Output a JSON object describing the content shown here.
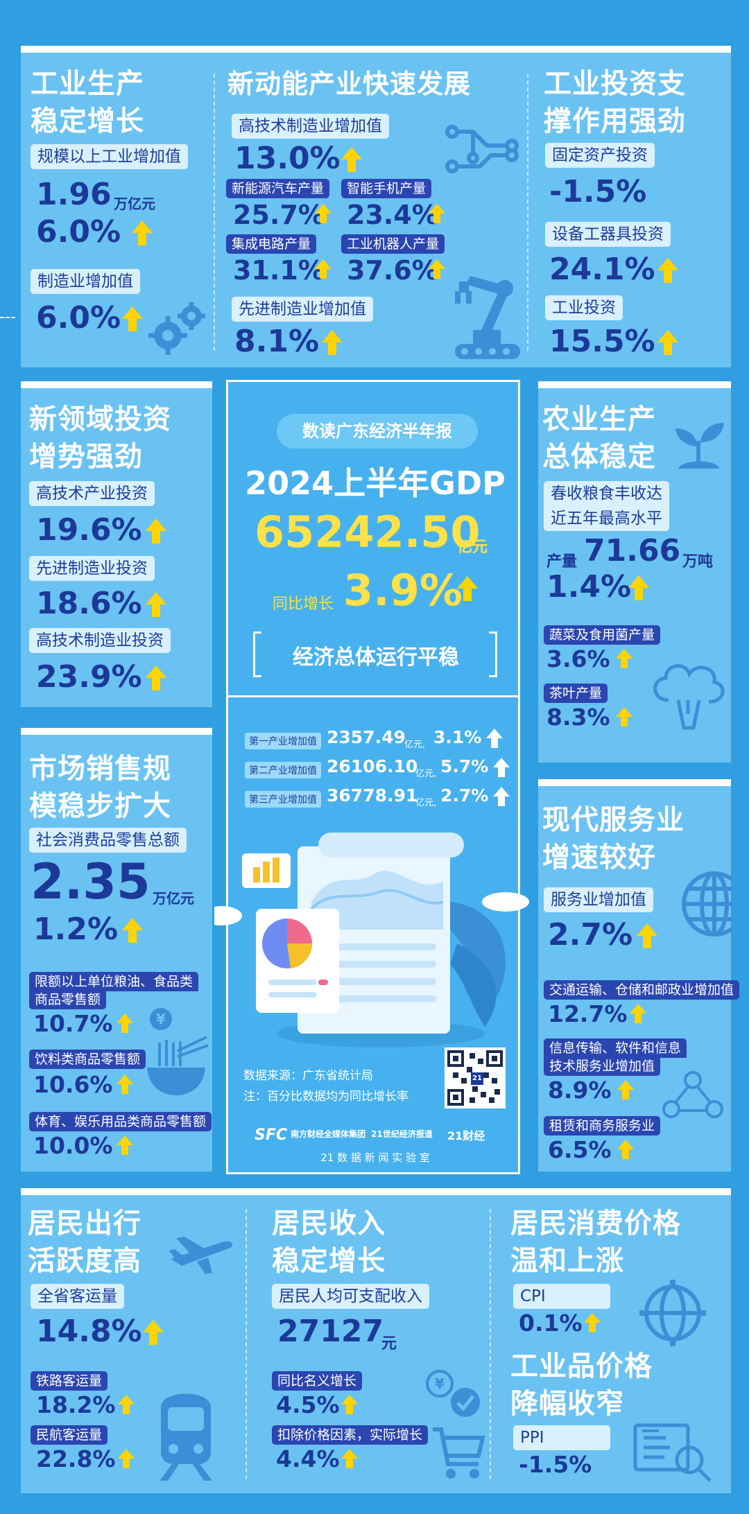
{
  "colors": {
    "background": "#2f9fe2",
    "panel": "#6ac2f2",
    "value": "#1c3898",
    "arrow": "#ffd400",
    "gdp": "#ffe14a"
  },
  "industry": {
    "title_l1": "工业生产",
    "title_l2": "稳定增长",
    "item1_label": "规模以上工业增加值",
    "item1_value": "1.96",
    "item1_unit": "万亿元",
    "item1_growth": "6.0%",
    "item2_label": "制造业增加值",
    "item2_value": "6.0%",
    "icon": "gear-icon"
  },
  "new_energy": {
    "title": "新动能产业快速发展",
    "hitech_label": "高技术制造业增加值",
    "hitech_value": "13.0%",
    "nev_label": "新能源汽车产量",
    "nev_value": "25.7%",
    "phone_label": "智能手机产量",
    "phone_value": "23.4%",
    "ic_label": "集成电路产量",
    "ic_value": "31.1%",
    "robot_label": "工业机器人产量",
    "robot_value": "37.6%",
    "adv_label": "先进制造业增加值",
    "adv_value": "8.1%",
    "icons": [
      "circuit-icon",
      "robot-arm-icon"
    ]
  },
  "investment": {
    "title_l1": "工业投资支",
    "title_l2": "撑作用强劲",
    "fixed_label": "固定资产投资",
    "fixed_value": "-1.5%",
    "equip_label": "设备工器具投资",
    "equip_value": "24.1%",
    "ind_label": "工业投资",
    "ind_value": "15.5%"
  },
  "new_field": {
    "title_l1": "新领域投资",
    "title_l2": "增势强劲",
    "hitech_label": "高技术产业投资",
    "hitech_value": "19.6%",
    "adv_label": "先进制造业投资",
    "adv_value": "18.6%",
    "hmfg_label": "高技术制造业投资",
    "hmfg_value": "23.9%"
  },
  "center": {
    "pill": "数读广东经济半年报",
    "gdp_title": "2024上半年GDP",
    "gdp_value": "65242.50",
    "gdp_unit": "亿元",
    "growth_label": "同比增长",
    "growth_value": "3.9%",
    "summary": "经济总体运行平稳",
    "rows": [
      {
        "label": "第一产业增加值",
        "value": "2357.49",
        "unit": "亿元,",
        "growth": "3.1%"
      },
      {
        "label": "第二产业增加值",
        "value": "26106.10",
        "unit": "亿元,",
        "growth": "5.7%"
      },
      {
        "label": "第三产业增加值",
        "value": "36778.91",
        "unit": "亿元,",
        "growth": "2.7%"
      }
    ],
    "source": "数据来源：广东省统计局",
    "note": "注：百分比数据均为同比增长率",
    "logo_sfc": "SFC",
    "logo_sfc_sub": "南方财经全媒体集团",
    "logo_21": "21世纪经济报道",
    "logo_21cj": "21财经",
    "lab": "21 数 据 新 闻 实 验 室",
    "qr_badge": "21"
  },
  "agriculture": {
    "title_l1": "农业生产",
    "title_l2": "总体稳定",
    "grain_label_l1": "春收粮食丰收达",
    "grain_label_l2": "近五年最高水平",
    "output_label": "产量",
    "output_value": "71.66",
    "output_unit": "万吨",
    "output_growth": "1.4%",
    "veg_label": "蔬菜及食用菌产量",
    "veg_value": "3.6%",
    "tea_label": "茶叶产量",
    "tea_value": "8.3%"
  },
  "retail": {
    "title_l1": "市场销售规",
    "title_l2": "模稳步扩大",
    "total_label": "社会消费品零售总额",
    "total_value": "2.35",
    "total_unit": "万亿元",
    "total_growth": "1.2%",
    "grain_label_l1": "限额以上单位粮油、食品类",
    "grain_label_l2": "商品零售额",
    "grain_value": "10.7%",
    "drink_label": "饮料类商品零售额",
    "drink_value": "10.6%",
    "sport_label": "体育、娱乐用品类商品零售额",
    "sport_value": "10.0%",
    "yen_symbol": "¥"
  },
  "services": {
    "title_l1": "现代服务业",
    "title_l2": "增速较好",
    "svc_label": "服务业增加值",
    "svc_value": "2.7%",
    "trans_label": "交通运输、仓储和邮政业增加值",
    "trans_value": "12.7%",
    "it_label_l1": "信息传输、软件和信息",
    "it_label_l2": "技术服务业增加值",
    "it_value": "8.9%",
    "lease_label": "租赁和商务服务业",
    "lease_value": "6.5%"
  },
  "travel": {
    "title_l1": "居民出行",
    "title_l2": "活跃度高",
    "total_label": "全省客运量",
    "total_value": "14.8%",
    "rail_label": "铁路客运量",
    "rail_value": "18.2%",
    "air_label": "民航客运量",
    "air_value": "22.8%"
  },
  "income": {
    "title_l1": "居民收入",
    "title_l2": "稳定增长",
    "per_label": "居民人均可支配收入",
    "per_value": "27127",
    "per_unit": "元",
    "nominal_label": "同比名义增长",
    "nominal_value": "4.5%",
    "real_label": "扣除价格因素，实际增长",
    "real_value": "4.4%",
    "yen_symbol": "¥"
  },
  "prices": {
    "title_l1": "居民消费价格",
    "title_l2": "温和上涨",
    "cpi_label": "CPI",
    "cpi_value": "0.1%",
    "ind_title_l1": "工业品价格",
    "ind_title_l2": "降幅收窄",
    "ppi_label": "PPI",
    "ppi_value": "-1.5%"
  }
}
